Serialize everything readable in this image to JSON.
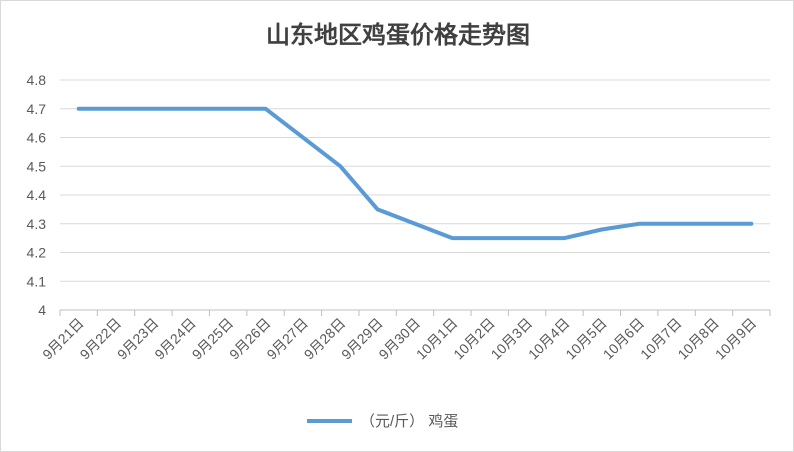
{
  "chart_data": {
    "type": "line",
    "title": "山东地区鸡蛋价格走势图",
    "xlabel": "",
    "ylabel": "",
    "categories": [
      "9月21日",
      "9月22日",
      "9月23日",
      "9月24日",
      "9月25日",
      "9月26日",
      "9月27日",
      "9月28日",
      "9月29日",
      "9月30日",
      "10月1日",
      "10月2日",
      "10月3日",
      "10月4日",
      "10月5日",
      "10月6日",
      "10月7日",
      "10月8日",
      "10月9日"
    ],
    "series": [
      {
        "name": "（元/斤） 鸡蛋",
        "color": "#5b9bd5",
        "values": [
          4.7,
          4.7,
          4.7,
          4.7,
          4.7,
          4.7,
          null,
          4.5,
          4.35,
          null,
          4.25,
          4.25,
          4.25,
          4.25,
          4.28,
          4.3,
          4.3,
          4.3,
          4.3
        ]
      }
    ],
    "ylim": [
      4,
      4.8
    ],
    "yticks": [
      "4",
      "4.1",
      "4.2",
      "4.3",
      "4.4",
      "4.5",
      "4.6",
      "4.7",
      "4.8"
    ],
    "grid": true,
    "legend_position": "bottom"
  }
}
